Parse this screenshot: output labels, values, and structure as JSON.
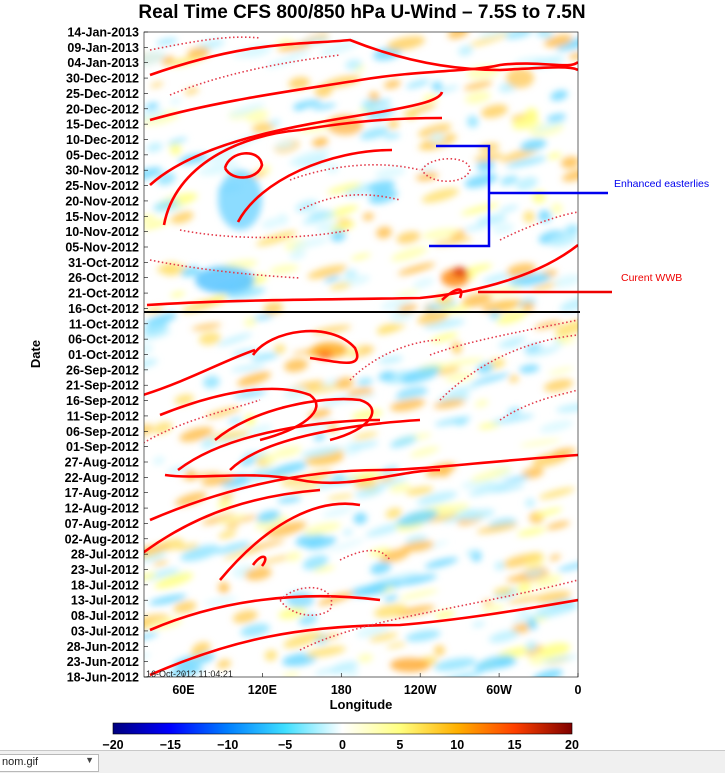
{
  "chart_data": {
    "type": "heatmap",
    "title": "Real Time CFS 800/850 hPa U-Wind – 7.5S to 7.5N",
    "xlabel": "Longitude",
    "ylabel": "Date",
    "x_ticks": [
      "60E",
      "120E",
      "180",
      "120W",
      "60W",
      "0"
    ],
    "x_tick_values": [
      60,
      120,
      180,
      240,
      300,
      360
    ],
    "xlim": [
      30,
      360
    ],
    "y_ticks": [
      "14-Jan-2013",
      "09-Jan-2013",
      "04-Jan-2013",
      "30-Dec-2012",
      "25-Dec-2012",
      "20-Dec-2012",
      "15-Dec-2012",
      "10-Dec-2012",
      "05-Dec-2012",
      "30-Nov-2012",
      "25-Nov-2012",
      "20-Nov-2012",
      "15-Nov-2012",
      "10-Nov-2012",
      "05-Nov-2012",
      "31-Oct-2012",
      "26-Oct-2012",
      "21-Oct-2012",
      "16-Oct-2012",
      "11-Oct-2012",
      "06-Oct-2012",
      "01-Oct-2012",
      "26-Sep-2012",
      "21-Sep-2012",
      "16-Sep-2012",
      "11-Sep-2012",
      "06-Sep-2012",
      "01-Sep-2012",
      "27-Aug-2012",
      "22-Aug-2012",
      "17-Aug-2012",
      "12-Aug-2012",
      "07-Aug-2012",
      "02-Aug-2012",
      "28-Jul-2012",
      "23-Jul-2012",
      "18-Jul-2012",
      "13-Jul-2012",
      "08-Jul-2012",
      "03-Jul-2012",
      "28-Jun-2012",
      "23-Jun-2012",
      "18-Jun-2012"
    ],
    "ylim": [
      "18-Jun-2012",
      "14-Jan-2013"
    ],
    "colorbar": {
      "ticks": [
        "−20",
        "−15",
        "−10",
        "−5",
        "0",
        "5",
        "10",
        "15",
        "20"
      ],
      "range": [
        -20,
        20
      ],
      "colormap": [
        "#00007f",
        "#0000ff",
        "#007fff",
        "#3fdfff",
        "#ffffff",
        "#ffff80",
        "#ffb000",
        "#ff4000",
        "#7f0000"
      ]
    },
    "divider_date": "16-Oct-2012",
    "annotations": [
      {
        "text": "Enhanced easterlies",
        "color": "#0000ee"
      },
      {
        "text": "Curent WWB",
        "color": "#ee0000"
      }
    ],
    "timestamp": "16-Oct-2012 11:04:21",
    "contour_colors": {
      "solid": "#ff0000",
      "dotted": "#e33a4a"
    },
    "grid": false
  },
  "taskbar": {
    "file_name": "nom.gif",
    "dropdown_icon": "chevron-down-icon"
  }
}
